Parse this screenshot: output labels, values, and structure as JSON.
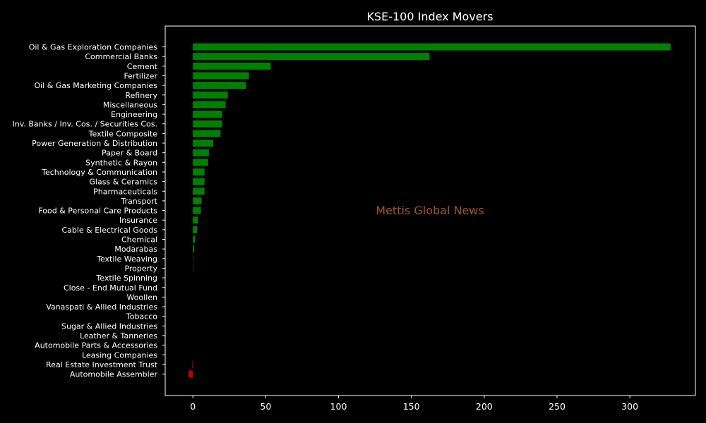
{
  "chart_data": {
    "type": "bar",
    "orientation": "horizontal",
    "title": "KSE-100 Index Movers",
    "watermark": "Mettis Global News",
    "xlim": [
      -19,
      345
    ],
    "xticks": [
      0,
      50,
      100,
      150,
      200,
      250,
      300
    ],
    "grid": false,
    "legend": "none",
    "colors": {
      "positive": "#008000",
      "negative": "#c00000",
      "background": "#000000",
      "text": "#ffffff",
      "watermark": "#a0522d"
    },
    "categories": [
      "Oil & Gas Exploration Companies",
      "Commercial Banks",
      "Cement",
      "Fertilizer",
      "Oil & Gas Marketing Companies",
      "Refinery",
      "Miscellaneous",
      "Engineering",
      "Inv. Banks / Inv. Cos. / Securities Cos.",
      "Textile Composite",
      "Power Generation & Distribution",
      "Paper & Board",
      "Synthetic & Rayon",
      "Technology & Communication",
      "Glass & Ceramics",
      "Pharmaceuticals",
      "Transport",
      "Food & Personal Care Products",
      "Insurance",
      "Cable & Electrical Goods",
      "Chemical",
      "Modarabas",
      "Textile Weaving",
      "Property",
      "Textile Spinning",
      "Close - End Mutual Fund",
      "Woollen",
      "Vanaspati & Allied Industries",
      "Tobacco",
      "Sugar & Allied Industries",
      "Leather & Tanneries",
      "Automobile Parts & Accessories",
      "Leasing Companies",
      "Real Estate Investment Trust",
      "Automobile Assembler"
    ],
    "values": [
      328,
      162.5,
      53.5,
      38.5,
      36.5,
      24,
      22.5,
      20,
      20,
      19,
      14,
      11,
      10.5,
      8,
      8,
      8,
      6,
      5.5,
      3.5,
      3,
      1.5,
      1,
      0.3,
      0.3,
      0,
      0,
      0,
      0,
      0,
      0,
      0,
      0,
      0,
      -0.4,
      -3
    ]
  }
}
